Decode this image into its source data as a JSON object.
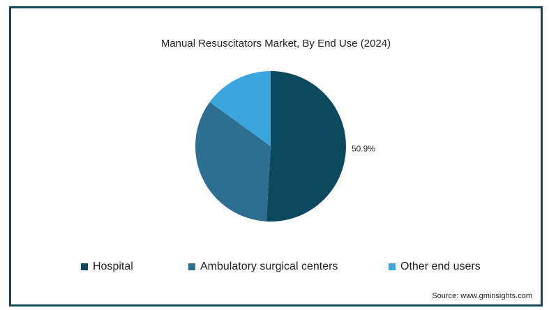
{
  "chart_data": {
    "type": "pie",
    "title": "Manual Resuscitators Market, By End Use (2024)",
    "slices": [
      {
        "label": "Hospital",
        "value": 50.9,
        "color": "#0b4a5e",
        "data_label": "50.9%"
      },
      {
        "label": "Ambulatory surgical centers",
        "value": 34.1,
        "color": "#2e6f91",
        "data_label": ""
      },
      {
        "label": "Other end users",
        "value": 15.0,
        "color": "#3aa6dc",
        "data_label": ""
      }
    ],
    "legend_position": "bottom"
  },
  "source": "Source: www.gminsights.com"
}
